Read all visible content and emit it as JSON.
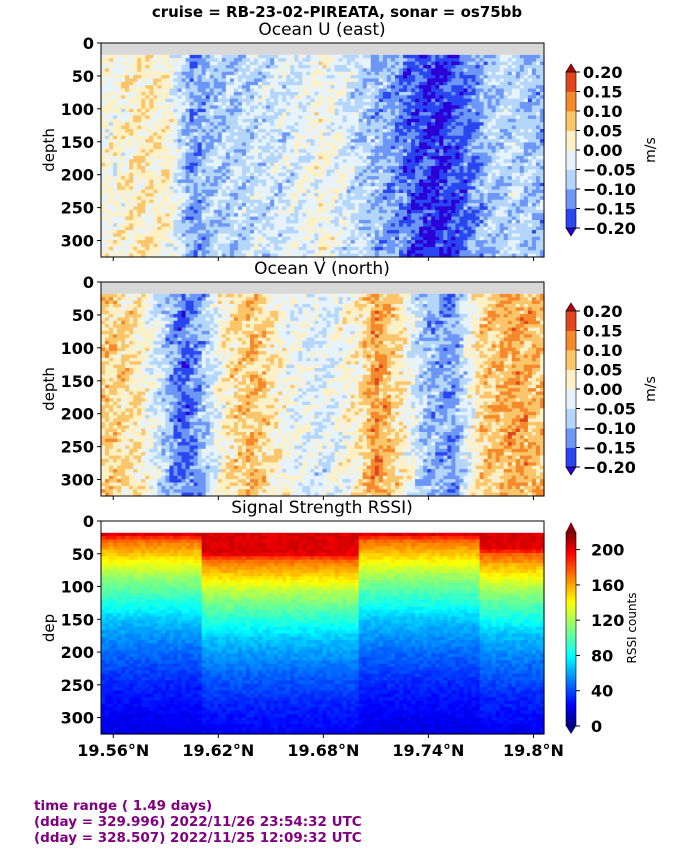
{
  "suptitle": "cruise = RB-23-02-PIREATA,  sonar = os75bb",
  "footer": {
    "line1": "time range ( 1.49 days)",
    "line2": "(dday = 329.996) 2022/11/26 23:54:32 UTC",
    "line3": "(dday = 328.507) 2022/11/25 12:09:32 UTC"
  },
  "chart_data": [
    {
      "type": "heatmap",
      "title": "Ocean U (east)",
      "ylabel": "depth",
      "xlabel": "",
      "x_ticks": [
        "19.56°N",
        "19.62°N",
        "19.68°N",
        "19.74°N",
        "19.8°N"
      ],
      "x_tick_values": [
        19.56,
        19.62,
        19.68,
        19.74,
        19.8
      ],
      "xlim": [
        19.553,
        19.806
      ],
      "y_ticks": [
        "0",
        "50",
        "100",
        "150",
        "200",
        "250",
        "300"
      ],
      "ylim": [
        325,
        0
      ],
      "colorbar": {
        "label": "m/s",
        "ticks": [
          "0.20",
          "0.15",
          "0.10",
          "0.05",
          "0.00",
          "−0.05",
          "−0.10",
          "−0.15",
          "−0.20"
        ],
        "levels": [
          -0.2,
          -0.15,
          -0.1,
          -0.05,
          0.0,
          0.05,
          0.1,
          0.15,
          0.2
        ],
        "colors": [
          "#2b00d6",
          "#2946f0",
          "#6d97f7",
          "#b4d6fb",
          "#e6f3fd",
          "#fdf0c5",
          "#fbc56a",
          "#f58a2c",
          "#e0471c",
          "#b4000c"
        ]
      },
      "profile_vs_latitude": {
        "lat": [
          19.56,
          19.575,
          19.59,
          19.605,
          19.62,
          19.64,
          19.66,
          19.68,
          19.7,
          19.72,
          19.73,
          19.745,
          19.76,
          19.775,
          19.79,
          19.805
        ],
        "mean_value": [
          0.0,
          0.03,
          0.02,
          -0.12,
          -0.08,
          -0.06,
          -0.04,
          0.0,
          -0.06,
          -0.12,
          -0.16,
          -0.2,
          -0.16,
          -0.08,
          -0.06,
          -0.1
        ]
      }
    },
    {
      "type": "heatmap",
      "title": "Ocean V (north)",
      "ylabel": "depth",
      "xlabel": "",
      "x_ticks": [
        "19.56°N",
        "19.62°N",
        "19.68°N",
        "19.74°N",
        "19.8°N"
      ],
      "x_tick_values": [
        19.56,
        19.62,
        19.68,
        19.74,
        19.8
      ],
      "xlim": [
        19.553,
        19.806
      ],
      "y_ticks": [
        "0",
        "50",
        "100",
        "150",
        "200",
        "250",
        "300"
      ],
      "ylim": [
        325,
        0
      ],
      "colorbar": {
        "label": "m/s",
        "ticks": [
          "0.20",
          "0.15",
          "0.10",
          "0.05",
          "0.00",
          "−0.05",
          "−0.10",
          "−0.15",
          "−0.20"
        ],
        "levels": [
          -0.2,
          -0.15,
          -0.1,
          -0.05,
          0.0,
          0.05,
          0.1,
          0.15,
          0.2
        ],
        "colors": [
          "#2b00d6",
          "#2946f0",
          "#6d97f7",
          "#b4d6fb",
          "#e6f3fd",
          "#fdf0c5",
          "#fbc56a",
          "#f58a2c",
          "#e0471c",
          "#b4000c"
        ]
      },
      "profile_vs_latitude": {
        "lat": [
          19.56,
          19.575,
          19.59,
          19.6,
          19.61,
          19.625,
          19.64,
          19.66,
          19.68,
          19.7,
          19.71,
          19.725,
          19.74,
          19.755,
          19.77,
          19.79,
          19.805
        ],
        "mean_value": [
          0.06,
          0.03,
          -0.08,
          -0.16,
          -0.1,
          0.03,
          0.08,
          -0.01,
          -0.04,
          0.02,
          0.12,
          0.03,
          -0.1,
          -0.12,
          0.06,
          0.1,
          0.07
        ]
      }
    },
    {
      "type": "heatmap",
      "title": "Signal Strength RSSI)",
      "ylabel": "dep",
      "xlabel": "",
      "x_ticks": [
        "19.56°N",
        "19.62°N",
        "19.68°N",
        "19.74°N",
        "19.8°N"
      ],
      "x_tick_values": [
        19.56,
        19.62,
        19.68,
        19.74,
        19.8
      ],
      "xlim": [
        19.553,
        19.806
      ],
      "y_ticks": [
        "0",
        "50",
        "100",
        "150",
        "200",
        "250",
        "300"
      ],
      "ylim": [
        325,
        0
      ],
      "colorbar": {
        "label": "RSSI counts",
        "ticks": [
          "200",
          "160",
          "120",
          "80",
          "40",
          "0"
        ],
        "range": [
          0,
          220
        ]
      },
      "profile_vs_depth": {
        "depth": [
          20,
          30,
          50,
          80,
          100,
          130,
          150,
          200,
          250,
          300,
          325
        ],
        "rssi_typical": [
          200,
          170,
          150,
          120,
          105,
          85,
          70,
          50,
          35,
          25,
          22
        ]
      }
    }
  ]
}
